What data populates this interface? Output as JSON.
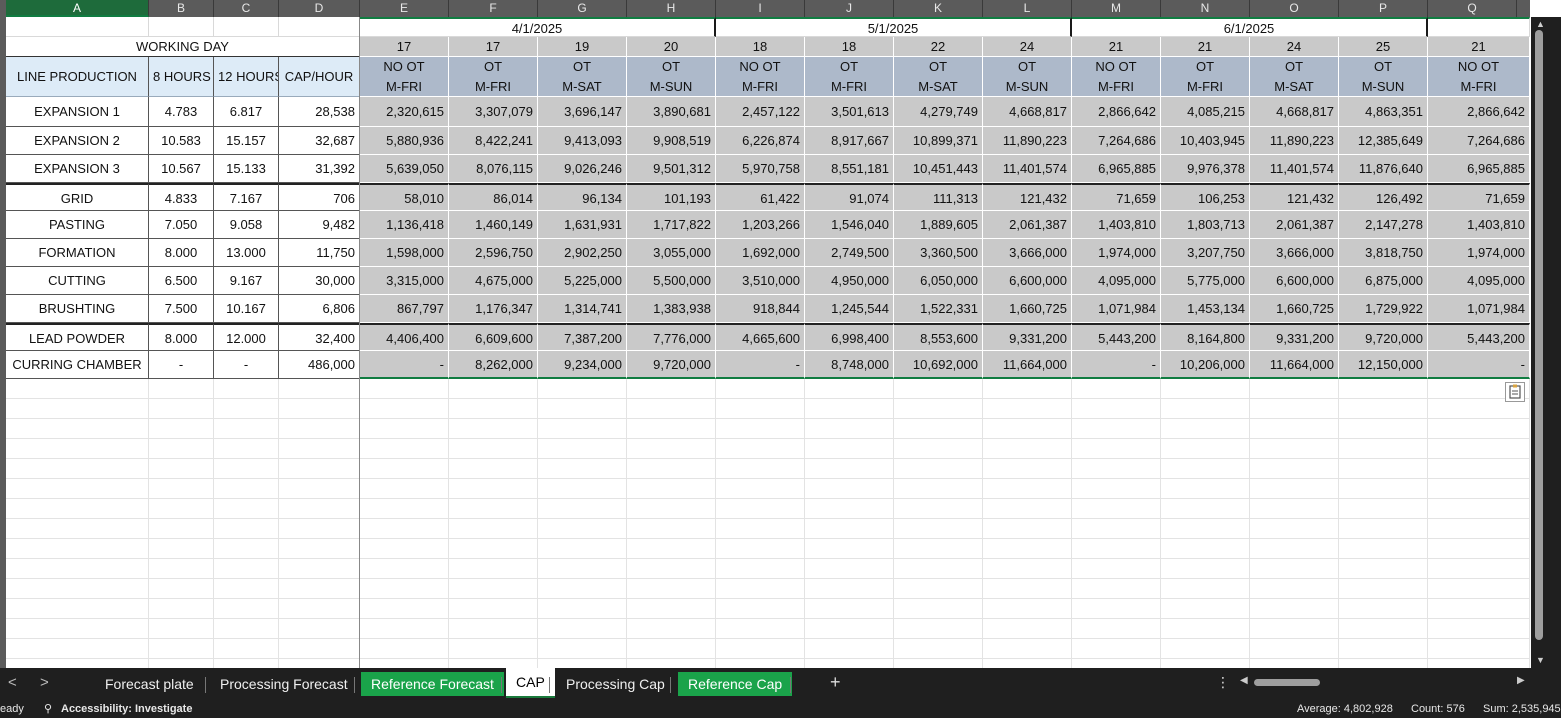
{
  "columns": [
    "A",
    "B",
    "C",
    "D",
    "E",
    "F",
    "G",
    "H",
    "I",
    "J",
    "K",
    "L",
    "M",
    "N",
    "O",
    "P",
    "Q"
  ],
  "months": [
    "4/1/2025",
    "5/1/2025",
    "6/1/2025"
  ],
  "working_day_label": "WORKING DAY",
  "header": {
    "line_production": "LINE PRODUCTION",
    "hours8": "8 HOURS",
    "hours12": "12 HOURS",
    "cap_hour": "CAP/HOUR"
  },
  "days": [
    "17",
    "17",
    "19",
    "20",
    "18",
    "18",
    "22",
    "24",
    "21",
    "21",
    "24",
    "25",
    "21"
  ],
  "ot_types": [
    "NO OT",
    "OT",
    "OT",
    "OT",
    "NO OT",
    "OT",
    "OT",
    "OT",
    "NO OT",
    "OT",
    "OT",
    "OT",
    "NO OT"
  ],
  "schedules": [
    "M-FRI",
    "M-FRI",
    "M-SAT",
    "M-SUN",
    "M-FRI",
    "M-FRI",
    "M-SAT",
    "M-SUN",
    "M-FRI",
    "M-FRI",
    "M-SAT",
    "M-SUN",
    "M-FRI"
  ],
  "rows": [
    {
      "name": "EXPANSION 1",
      "h8": "4.783",
      "h12": "6.817",
      "cap": "28,538",
      "vals": [
        "2,320,615",
        "3,307,079",
        "3,696,147",
        "3,890,681",
        "2,457,122",
        "3,501,613",
        "4,279,749",
        "4,668,817",
        "2,866,642",
        "4,085,215",
        "4,668,817",
        "4,863,351",
        "2,866,642"
      ]
    },
    {
      "name": "EXPANSION 2",
      "h8": "10.583",
      "h12": "15.157",
      "cap": "32,687",
      "vals": [
        "5,880,936",
        "8,422,241",
        "9,413,093",
        "9,908,519",
        "6,226,874",
        "8,917,667",
        "10,899,371",
        "11,890,223",
        "7,264,686",
        "10,403,945",
        "11,890,223",
        "12,385,649",
        "7,264,686"
      ]
    },
    {
      "name": "EXPANSION 3",
      "h8": "10.567",
      "h12": "15.133",
      "cap": "31,392",
      "vals": [
        "5,639,050",
        "8,076,115",
        "9,026,246",
        "9,501,312",
        "5,970,758",
        "8,551,181",
        "10,451,443",
        "11,401,574",
        "6,965,885",
        "9,976,378",
        "11,401,574",
        "11,876,640",
        "6,965,885"
      ]
    },
    {
      "name": "GRID",
      "h8": "4.833",
      "h12": "7.167",
      "cap": "706",
      "vals": [
        "58,010",
        "86,014",
        "96,134",
        "101,193",
        "61,422",
        "91,074",
        "111,313",
        "121,432",
        "71,659",
        "106,253",
        "121,432",
        "126,492",
        "71,659"
      ]
    },
    {
      "name": "PASTING",
      "h8": "7.050",
      "h12": "9.058",
      "cap": "9,482",
      "vals": [
        "1,136,418",
        "1,460,149",
        "1,631,931",
        "1,717,822",
        "1,203,266",
        "1,546,040",
        "1,889,605",
        "2,061,387",
        "1,403,810",
        "1,803,713",
        "2,061,387",
        "2,147,278",
        "1,403,810"
      ]
    },
    {
      "name": "FORMATION",
      "h8": "8.000",
      "h12": "13.000",
      "cap": "11,750",
      "vals": [
        "1,598,000",
        "2,596,750",
        "2,902,250",
        "3,055,000",
        "1,692,000",
        "2,749,500",
        "3,360,500",
        "3,666,000",
        "1,974,000",
        "3,207,750",
        "3,666,000",
        "3,818,750",
        "1,974,000"
      ]
    },
    {
      "name": "CUTTING",
      "h8": "6.500",
      "h12": "9.167",
      "cap": "30,000",
      "vals": [
        "3,315,000",
        "4,675,000",
        "5,225,000",
        "5,500,000",
        "3,510,000",
        "4,950,000",
        "6,050,000",
        "6,600,000",
        "4,095,000",
        "5,775,000",
        "6,600,000",
        "6,875,000",
        "4,095,000"
      ]
    },
    {
      "name": "BRUSHTING",
      "h8": "7.500",
      "h12": "10.167",
      "cap": "6,806",
      "vals": [
        "867,797",
        "1,176,347",
        "1,314,741",
        "1,383,938",
        "918,844",
        "1,245,544",
        "1,522,331",
        "1,660,725",
        "1,071,984",
        "1,453,134",
        "1,660,725",
        "1,729,922",
        "1,071,984"
      ]
    },
    {
      "name": "LEAD POWDER",
      "h8": "8.000",
      "h12": "12.000",
      "cap": "32,400",
      "vals": [
        "4,406,400",
        "6,609,600",
        "7,387,200",
        "7,776,000",
        "4,665,600",
        "6,998,400",
        "8,553,600",
        "9,331,200",
        "5,443,200",
        "8,164,800",
        "9,331,200",
        "9,720,000",
        "5,443,200"
      ]
    },
    {
      "name": "CURRING CHAMBER",
      "h8": "-",
      "h12": "-",
      "cap": "486,000",
      "vals": [
        "-",
        "8,262,000",
        "9,234,000",
        "9,720,000",
        "-",
        "8,748,000",
        "10,692,000",
        "11,664,000",
        "-",
        "10,206,000",
        "11,664,000",
        "12,150,000",
        "-"
      ]
    }
  ],
  "tabs": [
    {
      "label": "Forecast plate",
      "style": "plain"
    },
    {
      "label": "Processing Forecast",
      "style": "plain"
    },
    {
      "label": "Reference Forecast",
      "style": "green"
    },
    {
      "label": "CAP",
      "style": "active"
    },
    {
      "label": "Processing Cap",
      "style": "plain"
    },
    {
      "label": "Reference Cap",
      "style": "green"
    }
  ],
  "add_sheet": "+",
  "status": {
    "ready": "eady",
    "accessibility": "Accessibility: Investigate",
    "average": "Average: 4,802,928",
    "count": "Count: 576",
    "sum": "Sum: 2,535,945"
  },
  "colors": {
    "header_blue": "#ddebf7",
    "grey_cell": "#c9c9c9",
    "grey_header": "#adb9ca",
    "green_border": "#107c41"
  }
}
